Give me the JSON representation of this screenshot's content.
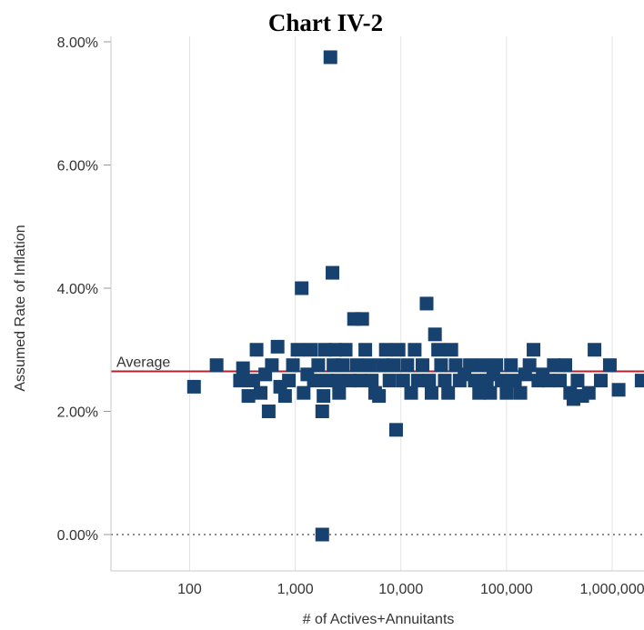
{
  "chart_data": {
    "type": "scatter",
    "title": "Chart IV-2",
    "xlabel": "# of Actives+Annuitants",
    "ylabel": "Assumed Rate of Inflation",
    "x_scale": "log",
    "xlim": [
      18,
      2000000
    ],
    "ylim": [
      0,
      8.2
    ],
    "x_ticks": [
      100,
      1000,
      10000,
      100000,
      1000000
    ],
    "x_tick_labels": [
      "100",
      "1,000",
      "10,000",
      "100,000",
      "1,000,000"
    ],
    "y_ticks": [
      0,
      2,
      4,
      6,
      8
    ],
    "y_tick_labels": [
      "0.00%",
      "2.00%",
      "4.00%",
      "6.00%",
      "8.00%"
    ],
    "grid": true,
    "reference_line": {
      "label": "Average",
      "value": 2.65,
      "color": "#b22234"
    },
    "zero_line": {
      "value": 0,
      "style": "dotted"
    },
    "marker_color": "#17426f",
    "points": [
      [
        110,
        2.4
      ],
      [
        180,
        2.75
      ],
      [
        300,
        2.5
      ],
      [
        320,
        2.7
      ],
      [
        360,
        2.25
      ],
      [
        400,
        2.5
      ],
      [
        430,
        3.0
      ],
      [
        470,
        2.3
      ],
      [
        520,
        2.6
      ],
      [
        560,
        2.0
      ],
      [
        600,
        2.75
      ],
      [
        680,
        3.05
      ],
      [
        720,
        2.4
      ],
      [
        800,
        2.25
      ],
      [
        870,
        2.5
      ],
      [
        950,
        2.75
      ],
      [
        1050,
        3.0
      ],
      [
        1150,
        4.0
      ],
      [
        1200,
        2.3
      ],
      [
        1300,
        2.6
      ],
      [
        1400,
        3.0
      ],
      [
        1500,
        2.5
      ],
      [
        1650,
        2.75
      ],
      [
        1800,
        0.0
      ],
      [
        1800,
        2.0
      ],
      [
        1850,
        2.25
      ],
      [
        1900,
        3.0
      ],
      [
        2000,
        2.5
      ],
      [
        2150,
        7.75
      ],
      [
        2250,
        4.25
      ],
      [
        2300,
        2.75
      ],
      [
        2400,
        3.0
      ],
      [
        2500,
        2.5
      ],
      [
        2600,
        2.3
      ],
      [
        2800,
        2.75
      ],
      [
        3000,
        3.0
      ],
      [
        3300,
        2.5
      ],
      [
        3600,
        3.5
      ],
      [
        3800,
        2.75
      ],
      [
        4100,
        2.5
      ],
      [
        4300,
        3.5
      ],
      [
        4600,
        3.0
      ],
      [
        5000,
        2.75
      ],
      [
        5300,
        2.5
      ],
      [
        5700,
        2.3
      ],
      [
        6200,
        2.25
      ],
      [
        6700,
        2.75
      ],
      [
        7200,
        3.0
      ],
      [
        7800,
        2.5
      ],
      [
        8500,
        2.75
      ],
      [
        9000,
        1.7
      ],
      [
        9500,
        3.0
      ],
      [
        10500,
        2.5
      ],
      [
        11500,
        2.75
      ],
      [
        12500,
        2.3
      ],
      [
        13500,
        3.0
      ],
      [
        14500,
        2.5
      ],
      [
        16000,
        2.75
      ],
      [
        17500,
        3.75
      ],
      [
        18500,
        2.5
      ],
      [
        19500,
        2.3
      ],
      [
        21000,
        3.25
      ],
      [
        22500,
        3.0
      ],
      [
        24000,
        2.75
      ],
      [
        26000,
        2.5
      ],
      [
        28000,
        2.3
      ],
      [
        30000,
        3.0
      ],
      [
        33000,
        2.75
      ],
      [
        36000,
        2.5
      ],
      [
        40000,
        2.6
      ],
      [
        45000,
        2.75
      ],
      [
        50000,
        2.5
      ],
      [
        55000,
        2.3
      ],
      [
        60000,
        2.75
      ],
      [
        65000,
        2.5
      ],
      [
        70000,
        2.3
      ],
      [
        75000,
        2.6
      ],
      [
        80000,
        2.75
      ],
      [
        90000,
        2.5
      ],
      [
        100000,
        2.3
      ],
      [
        110000,
        2.75
      ],
      [
        120000,
        2.5
      ],
      [
        135000,
        2.3
      ],
      [
        150000,
        2.6
      ],
      [
        165000,
        2.75
      ],
      [
        180000,
        3.0
      ],
      [
        200000,
        2.5
      ],
      [
        220000,
        2.6
      ],
      [
        250000,
        2.5
      ],
      [
        280000,
        2.75
      ],
      [
        320000,
        2.5
      ],
      [
        360000,
        2.75
      ],
      [
        400000,
        2.3
      ],
      [
        430000,
        2.2
      ],
      [
        470000,
        2.5
      ],
      [
        520000,
        2.25
      ],
      [
        600000,
        2.3
      ],
      [
        680000,
        3.0
      ],
      [
        780000,
        2.5
      ],
      [
        950000,
        2.75
      ],
      [
        1150000,
        2.35
      ],
      [
        1900000,
        2.5
      ]
    ]
  }
}
